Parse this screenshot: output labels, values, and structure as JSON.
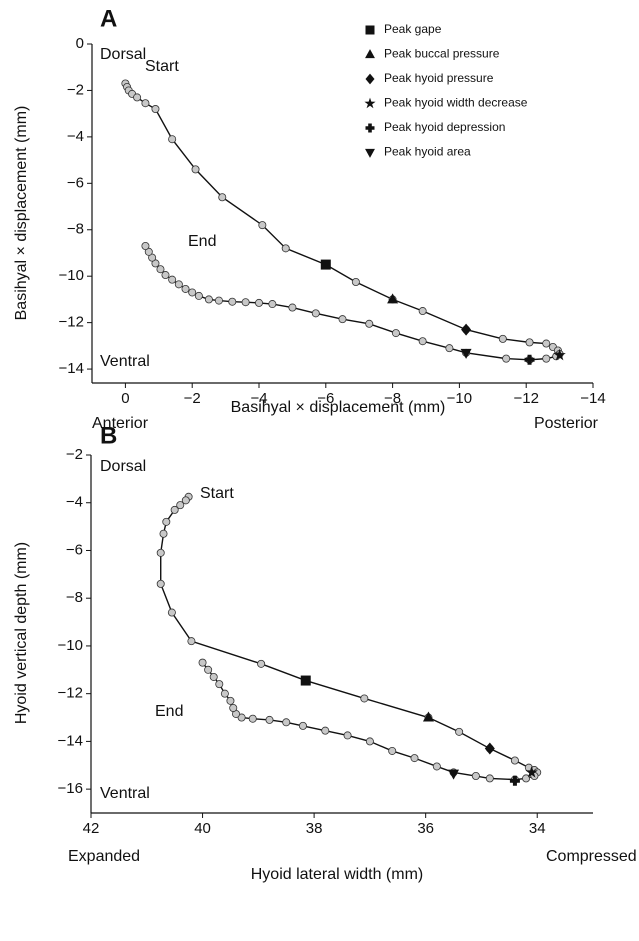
{
  "chart_data": [
    {
      "type": "line",
      "panel_label": "A",
      "xlabel": "Basihyal × displacement (mm)",
      "ylabel": "Basihyal × displacement (mm)",
      "xlim": [
        1,
        -14
      ],
      "ylim": [
        -14.6,
        0
      ],
      "xticks": [
        0,
        {
          "value": -2,
          "label": "−2"
        },
        {
          "value": -4,
          "label": "−4"
        },
        {
          "value": -6,
          "label": "−6"
        },
        {
          "value": -8,
          "label": "−8"
        },
        {
          "value": -10,
          "label": "−10"
        },
        {
          "value": -12,
          "label": "−12"
        },
        {
          "value": -14,
          "label": "−14"
        }
      ],
      "yticks": [
        0,
        {
          "value": -2,
          "label": "−2"
        },
        {
          "value": -4,
          "label": "−4"
        },
        {
          "value": -6,
          "label": "−6"
        },
        {
          "value": -8,
          "label": "−8"
        },
        {
          "value": -10,
          "label": "−10"
        },
        {
          "value": -12,
          "label": "−12"
        },
        {
          "value": -14,
          "label": "−14"
        }
      ],
      "annotations": [
        "Dorsal",
        "Start",
        "End",
        "Ventral",
        "Anterior",
        "Posterior"
      ],
      "legend": "upper right",
      "series": [
        {
          "marker": "circle",
          "color": "#c8c8c8",
          "x": [
            0.0,
            -0.05,
            -0.1,
            -0.2,
            -0.35,
            -0.6,
            -0.9,
            -1.4,
            -2.1,
            -2.9,
            -4.1,
            -4.8,
            -6.0,
            -6.9,
            -8.0,
            -8.9,
            -10.2,
            -11.3,
            -12.1,
            -12.6,
            -12.8,
            -12.95,
            -13.0,
            -12.9,
            -12.6,
            -12.1,
            -11.4,
            -10.2,
            -9.7,
            -8.9,
            -8.1,
            -7.3,
            -6.5,
            -5.7,
            -5.0,
            -4.4,
            -4.0,
            -3.6,
            -3.2,
            -2.8,
            -2.5,
            -2.2,
            -2.0,
            -1.8,
            -1.6,
            -1.4,
            -1.2,
            -1.05,
            -0.9,
            -0.8,
            -0.7,
            -0.6
          ],
          "values": [
            -1.7,
            -1.85,
            -2.0,
            -2.15,
            -2.3,
            -2.55,
            -2.8,
            -4.1,
            -5.4,
            -6.6,
            -7.8,
            -8.8,
            -9.5,
            -10.25,
            -11.0,
            -11.5,
            -12.3,
            -12.7,
            -12.85,
            -12.9,
            -13.05,
            -13.2,
            -13.35,
            -13.45,
            -13.55,
            -13.6,
            -13.55,
            -13.3,
            -13.1,
            -12.8,
            -12.45,
            -12.05,
            -11.85,
            -11.6,
            -11.35,
            -11.2,
            -11.15,
            -11.12,
            -11.1,
            -11.05,
            -11.0,
            -10.85,
            -10.7,
            -10.55,
            -10.35,
            -10.15,
            -9.95,
            -9.7,
            -9.45,
            -9.2,
            -8.95,
            -8.7
          ]
        },
        {
          "name": "Peak gape",
          "marker": "square",
          "color": "#111111",
          "x": [
            -6.0
          ],
          "values": [
            -9.5
          ]
        },
        {
          "name": "Peak buccal pressure",
          "marker": "triangle",
          "color": "#111111",
          "x": [
            -8.0
          ],
          "values": [
            -11.0
          ]
        },
        {
          "name": "Peak hyoid pressure",
          "marker": "diamond",
          "color": "#111111",
          "x": [
            -10.2
          ],
          "values": [
            -12.3
          ]
        },
        {
          "name": "Peak hyoid width decrease",
          "marker": "star",
          "color": "#111111",
          "x": [
            -13.0
          ],
          "values": [
            -13.4
          ]
        },
        {
          "name": "Peak hyoid depression",
          "marker": "cross",
          "color": "#111111",
          "x": [
            -12.1
          ],
          "values": [
            -13.6
          ]
        },
        {
          "name": "Peak hyoid area",
          "marker": "triangle-down",
          "color": "#111111",
          "x": [
            -10.2
          ],
          "values": [
            -13.3
          ]
        }
      ]
    },
    {
      "type": "line",
      "panel_label": "B",
      "xlabel": "Hyoid lateral width (mm)",
      "ylabel": "Hyoid vertical depth (mm)",
      "xlim": [
        42,
        33
      ],
      "ylim": [
        -17,
        -2
      ],
      "xticks": [
        42,
        40,
        38,
        36,
        34
      ],
      "yticks": [
        {
          "value": -2,
          "label": "−2"
        },
        {
          "value": -4,
          "label": "−4"
        },
        {
          "value": -6,
          "label": "−6"
        },
        {
          "value": -8,
          "label": "−8"
        },
        {
          "value": -10,
          "label": "−10"
        },
        {
          "value": -12,
          "label": "−12"
        },
        {
          "value": -14,
          "label": "−14"
        },
        {
          "value": -16,
          "label": "−16"
        }
      ],
      "annotations": [
        "Dorsal",
        "Start",
        "End",
        "Ventral",
        "Expanded",
        "Compressed"
      ],
      "series": [
        {
          "marker": "circle",
          "color": "#c8c8c8",
          "x": [
            40.25,
            40.3,
            40.4,
            40.5,
            40.65,
            40.7,
            40.75,
            40.75,
            40.55,
            40.2,
            38.95,
            38.15,
            37.1,
            35.95,
            35.4,
            34.85,
            34.4,
            34.15,
            34.05,
            34.0,
            34.05,
            34.2,
            34.4,
            34.85,
            35.1,
            35.5,
            35.8,
            36.2,
            36.6,
            37.0,
            37.4,
            37.8,
            38.2,
            38.5,
            38.8,
            39.1,
            39.3,
            39.4,
            39.45,
            39.5,
            39.6,
            39.7,
            39.8,
            39.9,
            40.0
          ],
          "values": [
            -3.75,
            -3.9,
            -4.1,
            -4.3,
            -4.8,
            -5.3,
            -6.1,
            -7.4,
            -8.6,
            -9.8,
            -10.75,
            -11.45,
            -12.2,
            -13.0,
            -13.6,
            -14.3,
            -14.8,
            -15.1,
            -15.2,
            -15.3,
            -15.45,
            -15.55,
            -15.6,
            -15.55,
            -15.45,
            -15.3,
            -15.05,
            -14.7,
            -14.4,
            -14.0,
            -13.75,
            -13.55,
            -13.35,
            -13.2,
            -13.1,
            -13.05,
            -13.0,
            -12.85,
            -12.6,
            -12.3,
            -12.0,
            -11.6,
            -11.3,
            -11.0,
            -10.7
          ]
        },
        {
          "marker": "square",
          "color": "#111111",
          "x": [
            38.15
          ],
          "values": [
            -11.45
          ]
        },
        {
          "marker": "triangle",
          "color": "#111111",
          "x": [
            35.95
          ],
          "values": [
            -13.0
          ]
        },
        {
          "marker": "diamond",
          "color": "#111111",
          "x": [
            34.85
          ],
          "values": [
            -14.3
          ]
        },
        {
          "marker": "star",
          "color": "#111111",
          "x": [
            34.1
          ],
          "values": [
            -15.3
          ]
        },
        {
          "marker": "cross",
          "color": "#111111",
          "x": [
            34.4
          ],
          "values": [
            -15.65
          ]
        },
        {
          "marker": "triangle-down",
          "color": "#111111",
          "x": [
            35.5
          ],
          "values": [
            -15.35
          ]
        }
      ]
    }
  ]
}
